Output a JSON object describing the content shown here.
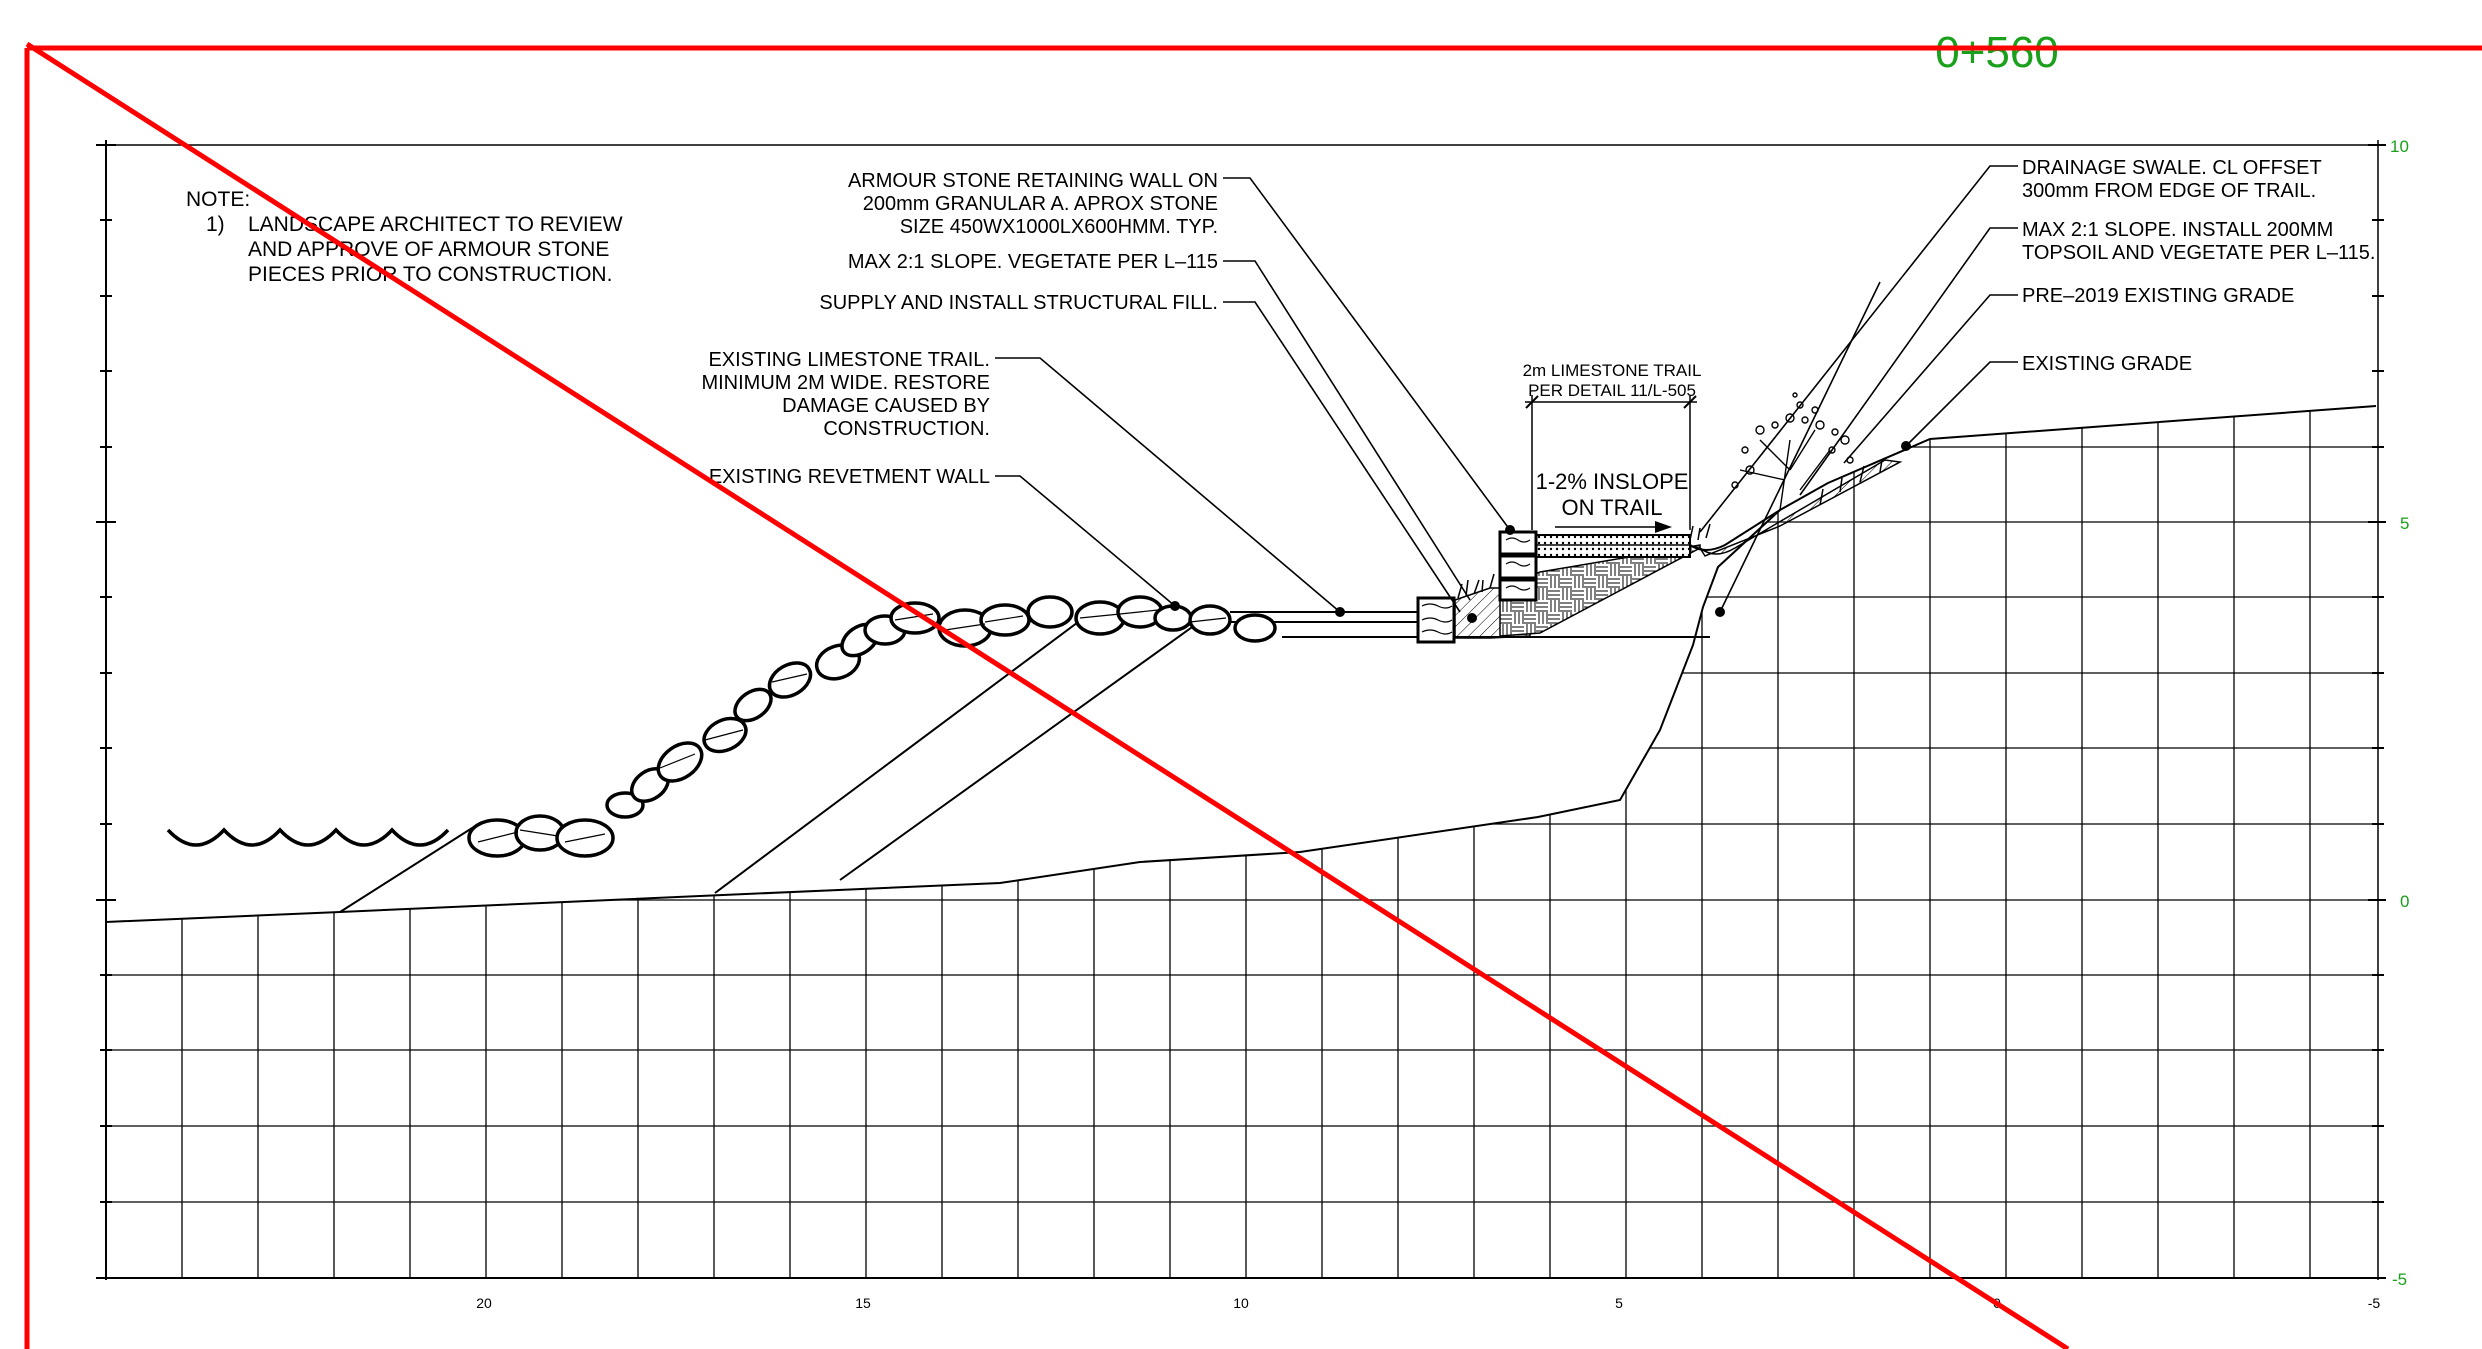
{
  "station": {
    "label": "0+560",
    "color": "#1aa01a"
  },
  "note": {
    "heading": "NOTE:",
    "number": "1)",
    "lines": [
      "LANDSCAPE ARCHITECT TO REVIEW",
      "AND APPROVE OF ARMOUR STONE",
      "PIECES PRIOR TO CONSTRUCTION."
    ]
  },
  "callouts": {
    "armour_stone": [
      "ARMOUR STONE RETAINING WALL ON",
      "200mm GRANULAR A. APROX STONE",
      "SIZE 450WX1000LX600HMM. TYP."
    ],
    "max_slope_l115": "MAX 2:1 SLOPE. VEGETATE PER L–115",
    "structural_fill": "SUPPLY AND INSTALL STRUCTURAL FILL.",
    "existing_trail": [
      "EXISTING LIMESTONE TRAIL.",
      "MINIMUM 2M WIDE. RESTORE",
      "DAMAGE CAUSED BY",
      "CONSTRUCTION."
    ],
    "revetment": "EXISTING REVETMENT WALL",
    "drainage_swale": [
      "DRAINAGE SWALE. CL OFFSET",
      "300mm FROM EDGE OF TRAIL."
    ],
    "topsoil": [
      "MAX 2:1 SLOPE. INSTALL 200MM",
      "TOPSOIL AND VEGETATE PER L–115."
    ],
    "pre2019": "PRE–2019 EXISTING GRADE",
    "existing_grade": "EXISTING GRADE",
    "trail_width": [
      "2m LIMESTONE TRAIL",
      "PER DETAIL 11/L-505"
    ],
    "inslope": [
      "1-2% INSLOPE",
      "ON TRAIL"
    ]
  },
  "axes": {
    "x_labels": [
      "20",
      "15",
      "10",
      "5",
      "0",
      "-5"
    ],
    "y_labels": [
      "10",
      "5",
      "0",
      "-5"
    ],
    "label_color": "#1aa01a"
  },
  "markup": {
    "color": "#ff0000"
  }
}
